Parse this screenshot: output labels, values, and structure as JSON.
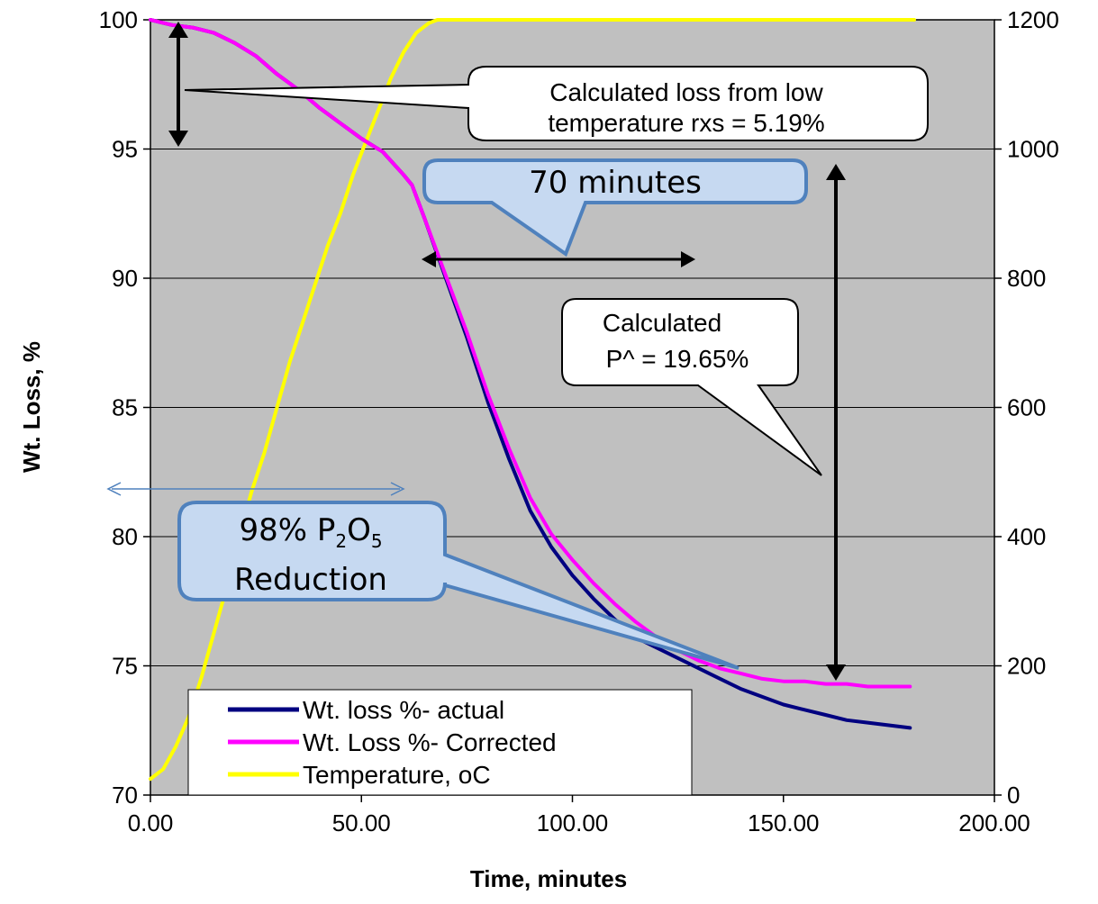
{
  "chart_data": {
    "type": "line",
    "title": "",
    "xlabel": "Time, minutes",
    "ylabel": "Wt. Loss, %",
    "xlim": [
      0,
      200
    ],
    "ylim": [
      70,
      100
    ],
    "y2lim": [
      0,
      1200
    ],
    "x_ticks": [
      "0.00",
      "50.00",
      "100.00",
      "150.00",
      "200.00"
    ],
    "y_ticks": [
      "70",
      "75",
      "80",
      "85",
      "90",
      "95",
      "100"
    ],
    "y2_ticks": [
      "0",
      "200",
      "400",
      "600",
      "800",
      "1000",
      "1200"
    ],
    "grid": "horizontal",
    "legend_position": "bottom-left",
    "series": [
      {
        "name": "Wt. loss %- actual",
        "color": "#000080",
        "axis": "left",
        "x": [
          0,
          5,
          10,
          15,
          20,
          25,
          30,
          35,
          40,
          45,
          50,
          55,
          60,
          62,
          65,
          70,
          75,
          80,
          85,
          90,
          95,
          100,
          105,
          110,
          115,
          120,
          125,
          130,
          135,
          140,
          145,
          150,
          155,
          160,
          165,
          170,
          175,
          180
        ],
        "y": [
          100,
          99.8,
          99.7,
          99.5,
          99.1,
          98.6,
          97.9,
          97.3,
          96.6,
          96.0,
          95.4,
          94.9,
          94.0,
          93.6,
          92.3,
          90.0,
          87.7,
          85.2,
          83.0,
          81.0,
          79.6,
          78.5,
          77.6,
          76.8,
          76.1,
          75.7,
          75.3,
          74.9,
          74.5,
          74.1,
          73.8,
          73.5,
          73.3,
          73.1,
          72.9,
          72.8,
          72.7,
          72.6
        ]
      },
      {
        "name": "Wt. Loss %- Corrected",
        "color": "#ff00ff",
        "axis": "left",
        "x": [
          0,
          5,
          10,
          15,
          20,
          25,
          30,
          35,
          40,
          45,
          50,
          55,
          60,
          62,
          65,
          70,
          75,
          80,
          85,
          90,
          95,
          100,
          105,
          110,
          115,
          120,
          125,
          130,
          135,
          140,
          145,
          150,
          155,
          160,
          165,
          170,
          175,
          180
        ],
        "y": [
          100,
          99.8,
          99.7,
          99.5,
          99.1,
          98.6,
          97.9,
          97.3,
          96.6,
          96.0,
          95.4,
          94.9,
          94.0,
          93.6,
          92.3,
          90.1,
          87.9,
          85.5,
          83.4,
          81.5,
          80.1,
          79.1,
          78.2,
          77.4,
          76.7,
          76.1,
          75.6,
          75.2,
          74.9,
          74.7,
          74.5,
          74.4,
          74.4,
          74.3,
          74.3,
          74.2,
          74.2,
          74.2
        ]
      },
      {
        "name": "Temperature, oC",
        "color": "#ffff00",
        "axis": "right",
        "x": [
          0,
          3,
          6,
          9,
          12,
          15,
          18,
          21,
          24,
          27,
          30,
          33,
          36,
          39,
          42,
          45,
          48,
          51,
          54,
          57,
          60,
          63,
          65,
          66,
          68,
          70,
          75,
          80,
          100,
          120,
          140,
          160,
          180,
          181
        ],
        "y": [
          25,
          40,
          75,
          120,
          180,
          250,
          320,
          400,
          470,
          530,
          600,
          670,
          730,
          790,
          850,
          900,
          960,
          1010,
          1060,
          1110,
          1150,
          1180,
          1190,
          1195,
          1200,
          1200,
          1200,
          1200,
          1200,
          1200,
          1200,
          1200,
          1200,
          1200
        ]
      }
    ],
    "annotations": {
      "low_temp": {
        "line1": "Calculated loss from low",
        "line2": "temperature rxs = 5.19%"
      },
      "minutes": "70 minutes",
      "p_loss": {
        "line1": "Calculated",
        "line2": "P^ = 19.65%"
      },
      "reduction": {
        "prefix": "98% P",
        "sub1": "2",
        "mid": "O",
        "sub2": "5",
        "line2": "Reduction"
      }
    }
  }
}
